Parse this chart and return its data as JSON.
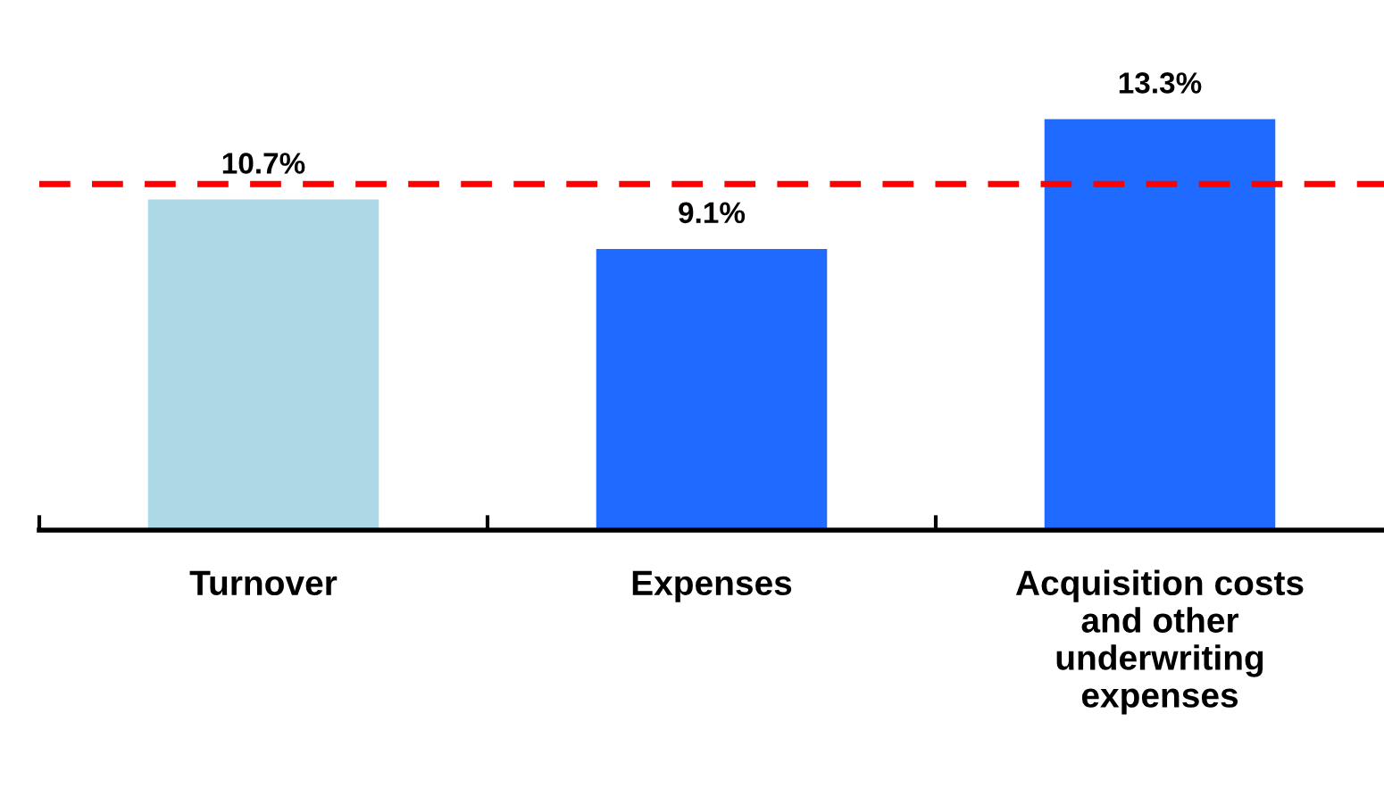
{
  "chart_data": {
    "type": "bar",
    "categories": [
      "Turnover",
      "Expenses",
      "Acquisition costs\nand other\nunderwriting\nexpenses"
    ],
    "values": [
      10.7,
      9.1,
      13.3
    ],
    "colors": [
      "#add8e6",
      "#1f6bff",
      "#1f6bff"
    ],
    "value_labels": [
      "10.7%",
      "9.1%",
      "13.3%"
    ],
    "ref_lines": [
      {
        "axis": "y",
        "value": 11.2,
        "color": "#ff0000",
        "line_style": "dashed"
      }
    ],
    "grid": false,
    "legend": false
  }
}
